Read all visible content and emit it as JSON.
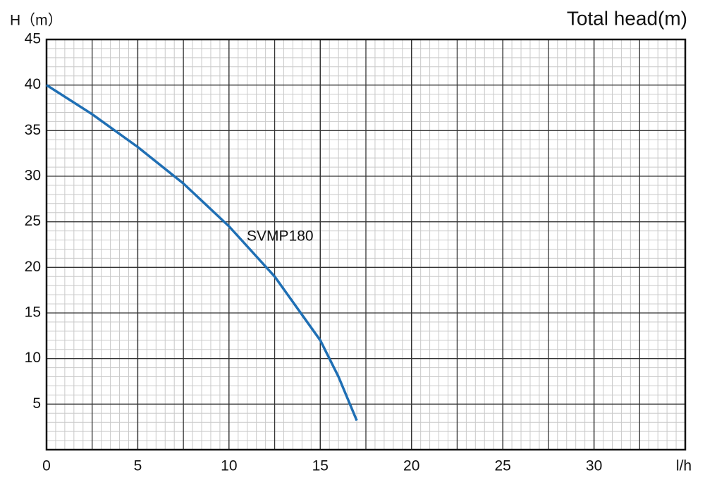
{
  "chart_data": {
    "type": "line",
    "title": "Total head(m)",
    "y_label": "H（m）",
    "x_label": "l/h",
    "x": [
      0,
      2.5,
      5,
      7.5,
      10,
      12.5,
      15,
      16,
      17
    ],
    "series": [
      {
        "name": "SVMP180",
        "color": "#1f6fb4",
        "values": [
          40,
          36.8,
          33.2,
          29.2,
          24.5,
          19,
          12,
          8,
          3.2
        ]
      }
    ],
    "xlim": [
      0,
      35
    ],
    "ylim": [
      0,
      45
    ],
    "xticks": [
      0,
      5,
      10,
      15,
      20,
      25,
      30
    ],
    "yticks": [
      5,
      10,
      15,
      20,
      25,
      30,
      35,
      40,
      45
    ],
    "grid": true
  }
}
